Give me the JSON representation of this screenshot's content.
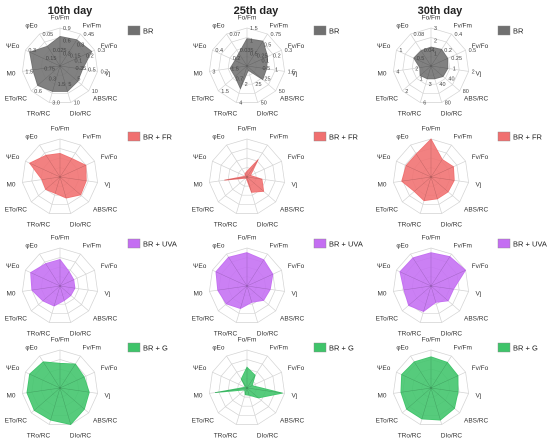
{
  "columns": [
    {
      "title": "10th day"
    },
    {
      "title": "25th day"
    },
    {
      "title": "30th day"
    }
  ],
  "axes": [
    "Fo/Fm",
    "Fv/Fm",
    "Fv/Fo",
    "Vj",
    "ABS/RC",
    "DIo/RC",
    "TRo/RC",
    "ETo/RC",
    "M0",
    "ΨEo",
    "φEo"
  ],
  "treatments": [
    {
      "label": "BR",
      "color": "#707070"
    },
    {
      "label": "BR + FR",
      "color": "#f07070"
    },
    {
      "label": "BR + UVA",
      "color": "#c46ef2"
    },
    {
      "label": "BR + G",
      "color": "#3fc46a"
    }
  ],
  "scales": [
    {
      "panel": "10th day",
      "ticks": {
        "Fo/Fm": [
          "0.3",
          "0.6",
          "0.9"
        ],
        "Fv/Fm": [
          "0.15",
          "0.3",
          "0.45"
        ],
        "Fv/Fo": [
          "0.1",
          "0.2",
          "0.3"
        ],
        "Vj": [
          "0.35",
          "0.5",
          "0.7"
        ],
        "ABS/RC": [
          "5",
          "10"
        ],
        "DIo/RC": [
          "5",
          "10"
        ],
        "TRo/RC": [
          "1.5",
          "3.0"
        ],
        "ETo/RC": [
          "0.3",
          "0.6"
        ],
        "M0": [
          "0.75",
          "1.5"
        ],
        "ΨEo": [
          "0.15",
          "0.3"
        ],
        "φEo": [
          "0.025",
          "0.05"
        ]
      }
    },
    {
      "panel": "25th day",
      "ticks": {
        "Fo/Fm": [
          "0.5",
          "1",
          "1.5"
        ],
        "Fv/Fm": [
          "0.25",
          "0.5",
          "0.75"
        ],
        "Fv/Fo": [
          "0.1",
          "0.2",
          "0.3"
        ],
        "Vj": [
          "0.5",
          "1",
          "1.5"
        ],
        "ABS/RC": [
          "25",
          "50"
        ],
        "DIo/RC": [
          "25",
          "50"
        ],
        "TRo/RC": [
          "2",
          "4"
        ],
        "ETo/RC": [
          "0.7",
          "1.5"
        ],
        "M0": [
          "1.5",
          "3"
        ],
        "ΨEo": [
          "0.2",
          "0.4"
        ],
        "φEo": [
          "0.035",
          "0.07"
        ]
      }
    },
    {
      "panel": "30th day",
      "ticks": {
        "Fo/Fm": [
          "1",
          "2",
          "3"
        ],
        "Fv/Fm": [
          "0.2",
          "0.4"
        ],
        "Fv/Fo": [
          "0.25",
          "0.5"
        ],
        "Vj": [
          "1",
          "2"
        ],
        "ABS/RC": [
          "40",
          "80"
        ],
        "DIo/RC": [
          "40",
          "80"
        ],
        "TRo/RC": [
          "3",
          "6"
        ],
        "ETo/RC": [
          "1",
          "2"
        ],
        "M0": [
          "2",
          "4"
        ],
        "ΨEo": [
          "0.5",
          "1"
        ],
        "φEo": [
          "0.04",
          "0.08"
        ]
      }
    }
  ],
  "chart_data": {
    "type": "radar",
    "value_scale": "fraction of each axis maximum (0–1)",
    "axes": [
      "Fo/Fm",
      "Fv/Fm",
      "Fv/Fo",
      "Vj",
      "ABS/RC",
      "DIo/RC",
      "TRo/RC",
      "ETo/RC",
      "M0",
      "ΨEo",
      "φEo"
    ],
    "panels": [
      {
        "column": "10th day",
        "row": "BR",
        "values": [
          0.78,
          0.82,
          0.92,
          0.6,
          0.62,
          0.7,
          0.7,
          0.78,
          0.72,
          0.88,
          0.62
        ]
      },
      {
        "column": "25th day",
        "row": "BR",
        "values": [
          0.72,
          0.78,
          0.6,
          0.52,
          0.55,
          0.12,
          0.62,
          0.42,
          0.45,
          0.35,
          0.4
        ]
      },
      {
        "column": "30th day",
        "row": "BR",
        "values": [
          0.5,
          0.52,
          0.48,
          0.45,
          0.42,
          0.35,
          0.35,
          0.38,
          0.3,
          0.5,
          0.48
        ]
      },
      {
        "column": "10th day",
        "row": "BR + FR",
        "values": [
          0.62,
          0.58,
          0.75,
          0.7,
          0.72,
          0.58,
          0.45,
          0.5,
          0.48,
          0.88,
          0.68
        ]
      },
      {
        "column": "25th day",
        "row": "BR + FR",
        "values": [
          0.15,
          0.55,
          0.1,
          0.4,
          0.58,
          0.42,
          0.05,
          0.05,
          0.6,
          0.05,
          0.1
        ]
      },
      {
        "column": "30th day",
        "row": "BR + FR",
        "values": [
          1.0,
          0.55,
          0.65,
          0.62,
          0.6,
          0.6,
          0.65,
          0.58,
          0.78,
          0.72,
          0.72
        ]
      },
      {
        "column": "10th day",
        "row": "BR + UVA",
        "values": [
          0.7,
          0.45,
          0.4,
          0.4,
          0.38,
          0.4,
          0.55,
          0.6,
          0.75,
          0.85,
          0.7
        ]
      },
      {
        "column": "25th day",
        "row": "BR + UVA",
        "values": [
          0.88,
          0.82,
          0.75,
          0.62,
          0.58,
          0.45,
          0.62,
          0.72,
          0.78,
          0.9,
          0.9
        ]
      },
      {
        "column": "30th day",
        "row": "BR + UVA",
        "values": [
          0.88,
          0.92,
          1.0,
          0.6,
          0.6,
          0.45,
          0.7,
          0.78,
          0.72,
          0.9,
          0.88
        ]
      },
      {
        "column": "10th day",
        "row": "BR + G",
        "values": [
          0.65,
          0.75,
          0.7,
          0.78,
          0.85,
          1.0,
          0.88,
          0.9,
          0.88,
          0.88,
          0.82
        ]
      },
      {
        "column": "25th day",
        "row": "BR + G",
        "values": [
          0.55,
          0.4,
          0.15,
          0.95,
          0.4,
          0.2,
          0.18,
          0.08,
          0.85,
          0.05,
          0.28
        ]
      },
      {
        "column": "30th day",
        "row": "BR + G",
        "values": [
          0.82,
          0.8,
          0.78,
          0.72,
          0.82,
          0.88,
          0.85,
          0.85,
          0.8,
          0.85,
          0.82
        ]
      }
    ]
  }
}
